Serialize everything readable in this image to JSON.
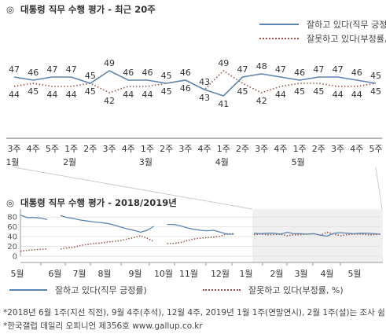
{
  "titles": {
    "top": "대통령 직무 수행 평가 - 최근 20주",
    "bottom": "대통령 직무 수행 평가 - 2018/2019년",
    "mark": "◎"
  },
  "legend": {
    "approve": "잘하고 있다(직무 긍정률)",
    "disapprove": "잘못하고 있다(부정률, %)"
  },
  "colors": {
    "approve": "#5b84b1",
    "disapprove": "#9b5147",
    "shade": "#f0f0f0"
  },
  "footnotes": [
    "*2018년 6월 1주(지선 직전), 9월 4주(추석), 12월 4주, 2019년 1월 1주(연말연시), 2월 1주(설)는 조사 쉼",
    "*한국갤럽 데일리 오피니언 제356호 www.gallup.co.kr"
  ],
  "chart_data": [
    {
      "type": "line",
      "title": "대통령 직무 수행 평가 - 최근 20주",
      "categories": [
        "3주",
        "4주",
        "5주",
        "1주",
        "2주",
        "3주",
        "4주",
        "1주",
        "2주",
        "3주",
        "4주",
        "1주",
        "2주",
        "3주",
        "4주",
        "1주",
        "2주",
        "3주",
        "4주",
        "5주"
      ],
      "month_labels": [
        {
          "index": 0,
          "label": "1월"
        },
        {
          "index": 3,
          "label": "2월"
        },
        {
          "index": 7,
          "label": "3월"
        },
        {
          "index": 11,
          "label": "4월"
        },
        {
          "index": 15,
          "label": "5월"
        }
      ],
      "series": [
        {
          "name": "잘하고 있다(직무 긍정률)",
          "values": [
            47,
            46,
            47,
            47,
            45,
            49,
            46,
            46,
            45,
            46,
            43,
            41,
            47,
            48,
            47,
            46,
            47,
            47,
            46,
            45
          ]
        },
        {
          "name": "잘못하고 있다(부정률, %)",
          "values": [
            44,
            45,
            44,
            44,
            45,
            42,
            44,
            44,
            45,
            46,
            43,
            49,
            45,
            42,
            44,
            45,
            45,
            44,
            44,
            45
          ]
        }
      ],
      "ylim": [
        30,
        60
      ],
      "legend_position": "top-right"
    },
    {
      "type": "line",
      "title": "대통령 직무 수행 평가 - 2018/2019년",
      "x_labels": [
        "5월",
        "6월",
        "7월",
        "8월",
        "9월",
        "10월",
        "11월",
        "12월",
        "1월",
        "2월",
        "3월",
        "4월",
        "5월"
      ],
      "y_ticks": [
        0,
        20,
        40,
        60,
        80
      ],
      "ylim": [
        0,
        90
      ],
      "grid": true,
      "shaded_period": "1월-5월",
      "series": [
        {
          "name": "잘하고 있다(직무 긍정률)",
          "values": [
            84,
            79,
            79,
            78,
            75,
            null,
            83,
            79,
            77,
            74,
            72,
            70,
            69,
            67,
            64,
            60,
            56,
            53,
            49,
            53,
            61,
            null,
            65,
            65,
            62,
            58,
            55,
            53,
            52,
            53,
            49,
            45,
            45,
            null,
            null,
            47,
            46,
            47,
            47,
            45,
            49,
            46,
            46,
            45,
            46,
            43,
            41,
            47,
            48,
            47,
            46,
            47,
            47,
            46,
            45
          ]
        },
        {
          "name": "잘못하고 있다(부정률, %)",
          "values": [
            10,
            12,
            13,
            14,
            15,
            null,
            15,
            17,
            18,
            22,
            24,
            26,
            27,
            29,
            30,
            32,
            35,
            38,
            42,
            37,
            30,
            null,
            26,
            26,
            28,
            32,
            35,
            37,
            38,
            39,
            41,
            46,
            46,
            null,
            null,
            44,
            45,
            44,
            44,
            45,
            42,
            44,
            44,
            45,
            46,
            43,
            49,
            45,
            42,
            44,
            45,
            45,
            44,
            44,
            45
          ]
        }
      ],
      "legend_position": "bottom"
    }
  ]
}
